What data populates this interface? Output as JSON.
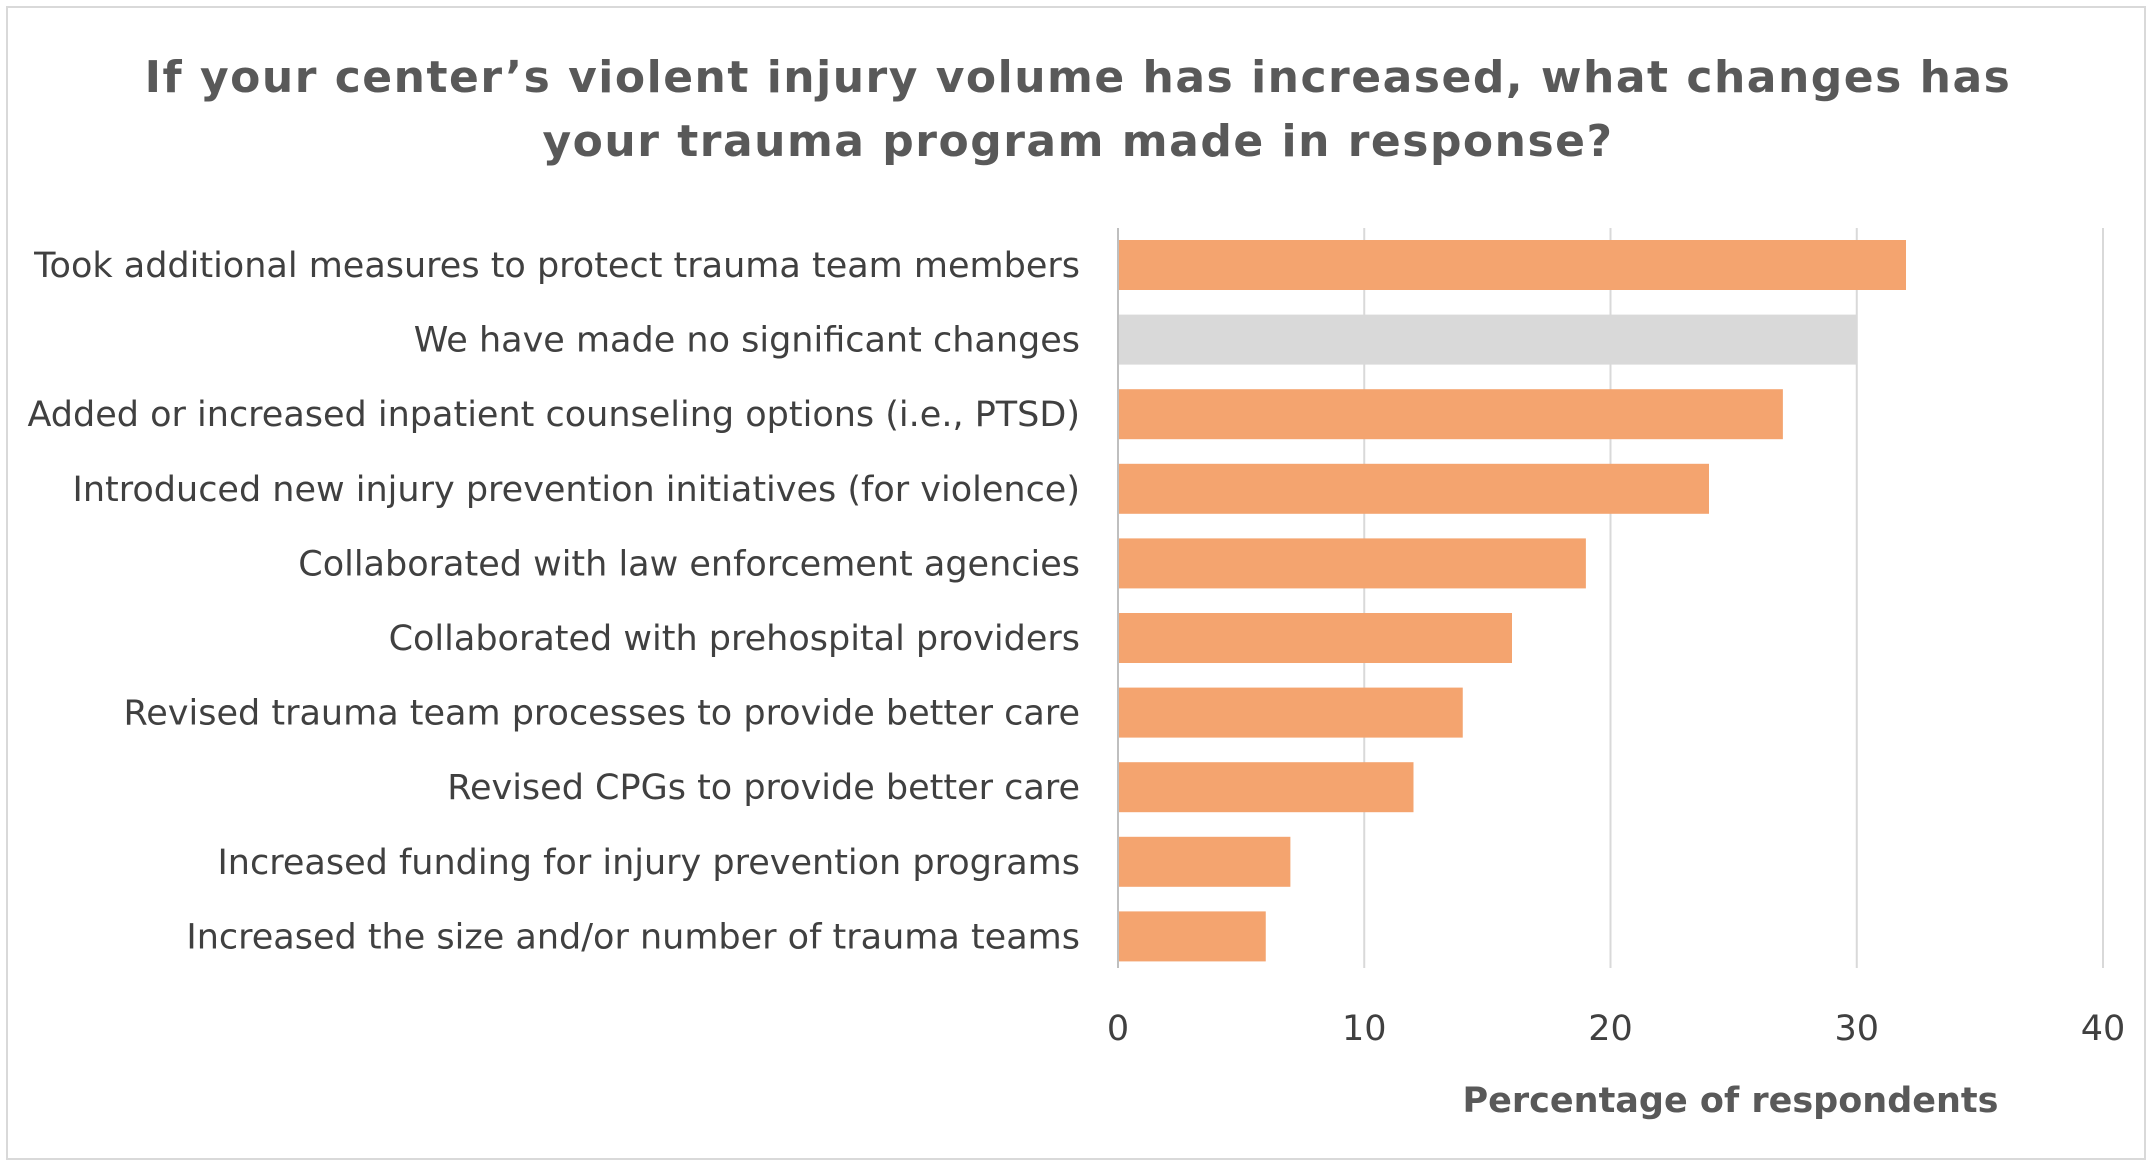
{
  "chart_data": {
    "type": "bar",
    "orientation": "horizontal",
    "title": "If your center’s violent injury volume has increased, what changes has your trauma program made in response?",
    "title_lines": [
      "If your center’s violent injury volume has increased, what changes has",
      "your trauma program made in response?"
    ],
    "xlabel": "Percentage of respondents",
    "ylabel": "",
    "xlim": [
      0,
      40
    ],
    "xticks": [
      0,
      10,
      20,
      30,
      40
    ],
    "grid": true,
    "categories": [
      "Took additional measures to protect trauma team members",
      "We have made no significant changes",
      "Added or increased inpatient counseling options (i.e., PTSD)",
      "Introduced new injury prevention initiatives (for violence)",
      "Collaborated with law enforcement agencies",
      "Collaborated with prehospital providers",
      "Revised trauma team processes to provide better care",
      "Revised CPGs to provide better care",
      "Increased funding for injury prevention programs",
      "Increased the size and/or number of trauma teams"
    ],
    "values": [
      32,
      30,
      27,
      24,
      19,
      16,
      14,
      12,
      7,
      6
    ],
    "bar_colors": [
      "#f4a46f",
      "#d9d9d9",
      "#f4a46f",
      "#f4a46f",
      "#f4a46f",
      "#f4a46f",
      "#f4a46f",
      "#f4a46f",
      "#f4a46f",
      "#f4a46f"
    ],
    "gridline_color": "#d9d9d9",
    "axis_color": "#bfbfbf"
  }
}
